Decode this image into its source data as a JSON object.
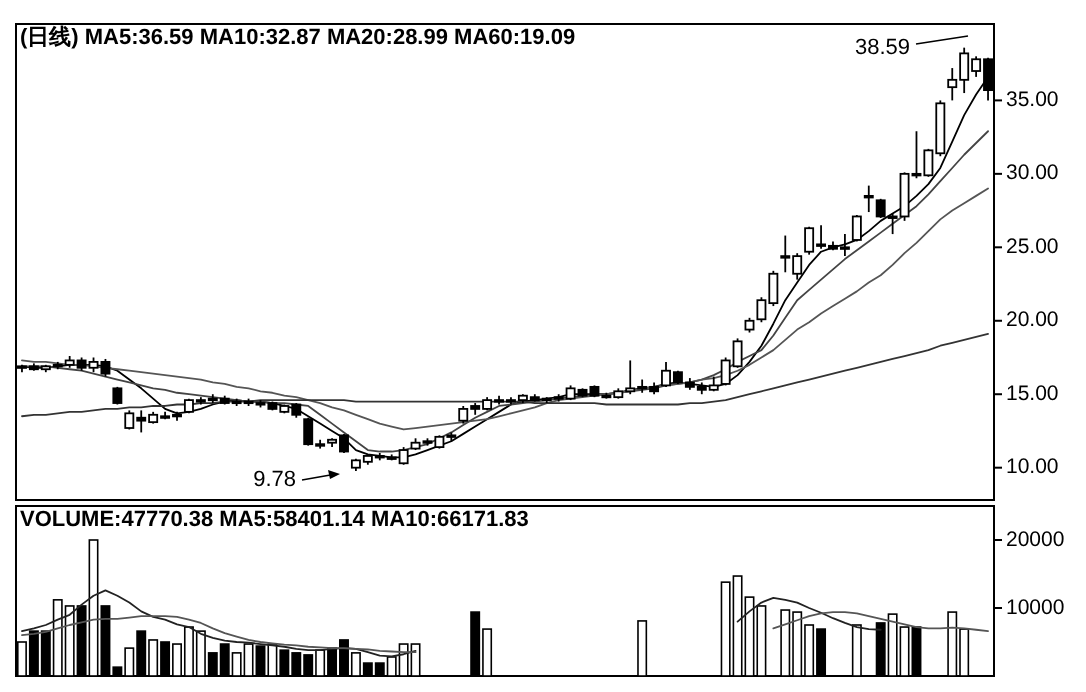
{
  "chart_data": [
    {
      "type": "candlestick",
      "title": "(日线) MA5:36.59 MA10:32.87 MA20:28.99 MA60:19.09",
      "color": "#000000",
      "categories": [
        null,
        null,
        null,
        null,
        null,
        null,
        null,
        null,
        null,
        null,
        null,
        null,
        null,
        null,
        null,
        null,
        null,
        null,
        null,
        null,
        null,
        null,
        null,
        null,
        null,
        null,
        null,
        null,
        null,
        null,
        null,
        null,
        null,
        null,
        null,
        null,
        null,
        null,
        null,
        null,
        null,
        null,
        null,
        null,
        null,
        null,
        null,
        null,
        null,
        null,
        null,
        null,
        null,
        null,
        null,
        null,
        null,
        null,
        null,
        null,
        null,
        null,
        null,
        null,
        null,
        null,
        null,
        null,
        null,
        null,
        null,
        null,
        null,
        null,
        null,
        null,
        null,
        null,
        null,
        null,
        null,
        null
      ],
      "ohlc": [
        [
          16.8,
          17.0,
          16.5,
          16.9
        ],
        [
          16.9,
          17.1,
          16.6,
          16.7
        ],
        [
          16.7,
          17.0,
          16.5,
          16.9
        ],
        [
          16.9,
          17.2,
          16.7,
          17.0
        ],
        [
          17.0,
          17.6,
          16.8,
          17.3
        ],
        [
          17.3,
          17.5,
          16.6,
          16.8
        ],
        [
          16.8,
          17.5,
          16.5,
          17.2
        ],
        [
          17.2,
          17.4,
          16.2,
          16.4
        ],
        [
          15.4,
          15.5,
          14.3,
          14.4
        ],
        [
          12.7,
          13.9,
          12.6,
          13.7
        ],
        [
          13.4,
          13.9,
          12.4,
          13.2
        ],
        [
          13.1,
          13.8,
          13.0,
          13.6
        ],
        [
          13.5,
          13.8,
          13.3,
          13.5
        ],
        [
          13.5,
          13.8,
          13.2,
          13.6
        ],
        [
          13.8,
          14.7,
          13.7,
          14.6
        ],
        [
          14.5,
          14.8,
          14.3,
          14.6
        ],
        [
          14.6,
          15.0,
          14.4,
          14.7
        ],
        [
          14.7,
          14.9,
          14.3,
          14.4
        ],
        [
          14.4,
          14.7,
          14.2,
          14.5
        ],
        [
          14.5,
          14.7,
          14.2,
          14.4
        ],
        [
          14.3,
          14.6,
          14.1,
          14.4
        ],
        [
          14.4,
          14.5,
          13.9,
          14.0
        ],
        [
          13.8,
          14.3,
          13.7,
          14.2
        ],
        [
          14.3,
          14.4,
          13.4,
          13.6
        ],
        [
          13.3,
          13.4,
          11.5,
          11.6
        ],
        [
          11.6,
          11.9,
          11.3,
          11.6
        ],
        [
          11.7,
          12.0,
          11.4,
          11.9
        ],
        [
          12.2,
          12.3,
          11.0,
          11.1
        ],
        [
          10.0,
          10.6,
          9.78,
          10.5
        ],
        [
          10.4,
          10.9,
          10.2,
          10.8
        ],
        [
          10.8,
          11.0,
          10.5,
          10.7
        ],
        [
          10.7,
          10.9,
          10.5,
          10.6
        ],
        [
          10.3,
          11.4,
          10.2,
          11.2
        ],
        [
          11.3,
          12.0,
          11.2,
          11.7
        ],
        [
          11.7,
          12.0,
          11.5,
          11.8
        ],
        [
          11.4,
          12.2,
          11.3,
          12.1
        ],
        [
          12.1,
          12.4,
          11.8,
          12.2
        ],
        [
          13.2,
          14.2,
          13.0,
          14.0
        ],
        [
          14.2,
          14.4,
          13.6,
          14.0
        ],
        [
          14.0,
          14.8,
          13.9,
          14.6
        ],
        [
          14.6,
          14.9,
          14.3,
          14.5
        ],
        [
          14.5,
          14.8,
          14.3,
          14.6
        ],
        [
          14.6,
          15.0,
          14.4,
          14.9
        ],
        [
          14.8,
          15.0,
          14.5,
          14.6
        ],
        [
          14.6,
          14.8,
          14.4,
          14.7
        ],
        [
          14.7,
          15.0,
          14.5,
          14.8
        ],
        [
          14.7,
          15.6,
          14.6,
          15.4
        ],
        [
          15.3,
          15.4,
          14.8,
          14.9
        ],
        [
          15.5,
          15.6,
          14.8,
          14.9
        ],
        [
          14.9,
          15.1,
          14.7,
          14.8
        ],
        [
          14.8,
          15.4,
          14.7,
          15.2
        ],
        [
          15.2,
          17.3,
          15.0,
          15.4
        ],
        [
          15.4,
          16.0,
          15.1,
          15.5
        ],
        [
          15.5,
          15.8,
          15.0,
          15.2
        ],
        [
          15.6,
          17.2,
          15.5,
          16.6
        ],
        [
          16.5,
          16.6,
          15.7,
          15.8
        ],
        [
          15.8,
          16.1,
          15.3,
          15.5
        ],
        [
          15.5,
          15.8,
          15.0,
          15.3
        ],
        [
          15.3,
          16.2,
          15.2,
          15.6
        ],
        [
          15.7,
          17.5,
          15.6,
          17.3
        ],
        [
          16.9,
          18.8,
          16.8,
          18.6
        ],
        [
          19.4,
          20.2,
          19.2,
          20.0
        ],
        [
          20.1,
          21.6,
          19.9,
          21.4
        ],
        [
          21.2,
          23.4,
          21.0,
          23.2
        ],
        [
          24.4,
          25.8,
          23.3,
          24.3
        ],
        [
          23.2,
          24.6,
          22.8,
          24.4
        ],
        [
          24.7,
          26.4,
          24.5,
          26.3
        ],
        [
          25.2,
          26.5,
          24.9,
          25.1
        ],
        [
          25.1,
          25.4,
          24.8,
          24.9
        ],
        [
          24.9,
          25.9,
          24.4,
          25.0
        ],
        [
          25.5,
          27.2,
          25.4,
          27.1
        ],
        [
          28.4,
          29.2,
          27.4,
          28.5
        ],
        [
          28.2,
          28.3,
          27.0,
          27.1
        ],
        [
          27.0,
          27.3,
          25.9,
          27.1
        ],
        [
          27.1,
          30.1,
          26.8,
          30.0
        ],
        [
          29.9,
          32.9,
          29.7,
          30.0
        ],
        [
          29.9,
          31.7,
          29.8,
          31.6
        ],
        [
          31.4,
          35.0,
          31.2,
          34.8
        ],
        [
          35.9,
          37.2,
          35.0,
          36.4
        ],
        [
          36.4,
          38.59,
          35.5,
          38.2
        ],
        [
          37.0,
          38.0,
          36.6,
          37.8
        ],
        [
          37.8,
          37.9,
          35.0,
          35.7
        ]
      ],
      "series": [
        {
          "type": "line",
          "color": "#000000",
          "values": [
            16.9,
            16.8,
            16.8,
            16.9,
            17.0,
            17.0,
            17.0,
            16.9,
            16.6,
            16.0,
            15.4,
            14.7,
            14.0,
            13.7,
            13.8,
            14.0,
            14.3,
            14.5,
            14.6,
            14.5,
            14.5,
            14.4,
            14.2,
            14.0,
            13.5,
            13.0,
            12.5,
            12.0,
            11.2,
            10.9,
            10.8,
            10.7,
            10.7,
            10.9,
            11.2,
            11.5,
            11.8,
            12.3,
            12.8,
            13.3,
            13.8,
            14.3,
            14.5,
            14.6,
            14.7,
            14.8,
            15.0,
            15.0,
            15.0,
            15.0,
            15.1,
            15.3,
            15.4,
            15.5,
            15.7,
            15.8,
            15.7,
            15.6,
            15.5,
            15.7,
            16.3,
            17.2,
            18.3,
            19.8,
            21.4,
            22.6,
            23.8,
            24.7,
            25.0,
            25.2,
            25.5,
            26.1,
            26.8,
            27.3,
            27.8,
            28.5,
            29.3,
            30.4,
            32.2,
            34.0,
            35.4,
            36.6
          ]
        },
        {
          "type": "line",
          "color": "#444444",
          "values": [
            16.9,
            16.9,
            16.9,
            16.8,
            16.7,
            16.6,
            16.4,
            16.2,
            16.0,
            15.8,
            15.6,
            15.4,
            15.3,
            15.1,
            15.0,
            14.9,
            14.8,
            14.7,
            14.6,
            14.5,
            14.5,
            14.4,
            14.4,
            14.3,
            14.2,
            13.6,
            13.0,
            12.4,
            11.8,
            11.2,
            11.1,
            11.1,
            11.2,
            11.4,
            11.6,
            12.0,
            12.4,
            12.9,
            13.4,
            13.8,
            14.2,
            14.3,
            14.4,
            14.5,
            14.6,
            14.7,
            14.8,
            14.9,
            14.9,
            15.0,
            15.1,
            15.2,
            15.3,
            15.4,
            15.6,
            15.7,
            15.8,
            16.0,
            16.3,
            16.7,
            17.2,
            17.6,
            18.0,
            19.0,
            20.2,
            21.4,
            22.1,
            22.8,
            23.5,
            24.2,
            24.8,
            25.4,
            26.0,
            26.6,
            27.2,
            27.8,
            28.6,
            29.5,
            30.4,
            31.3,
            32.1,
            32.9
          ]
        },
        {
          "type": "line",
          "color": "#555555",
          "values": [
            17.3,
            17.2,
            17.2,
            17.1,
            17.0,
            17.0,
            16.9,
            16.8,
            16.7,
            16.6,
            16.5,
            16.4,
            16.3,
            16.2,
            16.1,
            16.0,
            15.8,
            15.7,
            15.5,
            15.4,
            15.2,
            15.1,
            14.9,
            14.8,
            14.6,
            14.4,
            14.1,
            13.9,
            13.6,
            13.3,
            13.0,
            12.8,
            12.6,
            12.7,
            12.8,
            12.9,
            13.0,
            13.1,
            13.2,
            13.3,
            13.5,
            13.7,
            13.9,
            14.1,
            14.4,
            14.6,
            14.7,
            14.8,
            14.9,
            15.0,
            15.1,
            15.2,
            15.4,
            15.5,
            15.6,
            15.7,
            15.8,
            16.0,
            16.1,
            16.3,
            16.6,
            17.0,
            17.5,
            18.0,
            18.7,
            19.4,
            19.9,
            20.5,
            21.0,
            21.5,
            22.0,
            22.6,
            23.1,
            23.8,
            24.6,
            25.3,
            26.1,
            26.9,
            27.5,
            28.0,
            28.5,
            29.0
          ]
        },
        {
          "type": "line",
          "color": "#333333",
          "values": [
            13.5,
            13.6,
            13.6,
            13.7,
            13.8,
            13.8,
            13.9,
            14.0,
            14.0,
            14.1,
            14.1,
            14.2,
            14.2,
            14.3,
            14.3,
            14.4,
            14.4,
            14.5,
            14.5,
            14.5,
            14.6,
            14.6,
            14.6,
            14.6,
            14.6,
            14.6,
            14.6,
            14.6,
            14.5,
            14.5,
            14.5,
            14.5,
            14.5,
            14.5,
            14.5,
            14.5,
            14.5,
            14.5,
            14.5,
            14.5,
            14.5,
            14.5,
            14.5,
            14.4,
            14.4,
            14.4,
            14.4,
            14.4,
            14.4,
            14.3,
            14.3,
            14.3,
            14.3,
            14.3,
            14.3,
            14.3,
            14.4,
            14.4,
            14.5,
            14.6,
            14.8,
            15.0,
            15.2,
            15.4,
            15.6,
            15.8,
            16.0,
            16.2,
            16.4,
            16.6,
            16.8,
            17.0,
            17.2,
            17.4,
            17.6,
            17.8,
            18.0,
            18.3,
            18.5,
            18.7,
            18.9,
            19.1
          ]
        }
      ],
      "ylim": [
        7.8,
        40.2
      ],
      "yticks": [
        {
          "value": 10,
          "label": "10.00"
        },
        {
          "value": 15,
          "label": "15.00"
        },
        {
          "value": 20,
          "label": "20.00"
        },
        {
          "value": 25,
          "label": "25.00"
        },
        {
          "value": 30,
          "label": "30.00"
        },
        {
          "value": 35,
          "label": "35.00"
        }
      ],
      "tick_labels": "y",
      "annotations": [
        "38.59",
        "9.78"
      ]
    },
    {
      "type": "bar",
      "title": "VOLUME:47770.38 MA5:58401.14 MA10:66171.83",
      "categories": [
        null,
        null,
        null,
        null,
        null,
        null,
        null,
        null,
        null,
        null,
        null,
        null,
        null,
        null,
        null,
        null,
        null,
        null,
        null,
        null,
        null,
        null,
        null,
        null,
        null,
        null,
        null,
        null,
        null,
        null,
        null,
        null,
        null,
        null,
        null,
        null,
        null,
        null,
        null,
        null,
        null,
        null,
        null,
        null,
        null,
        null,
        null,
        null,
        null,
        null,
        null,
        null,
        null,
        null,
        null,
        null,
        null,
        null,
        null,
        null,
        null,
        null,
        null,
        null,
        null,
        null,
        null,
        null,
        null,
        null,
        null,
        null,
        null,
        null,
        null,
        null,
        null,
        null,
        null,
        null,
        null,
        null
      ],
      "series": [
        {
          "values": [
            5000,
            6600,
            6600,
            11200,
            10300,
            10300,
            20000,
            10300,
            1300,
            4100,
            6600,
            5300,
            5000,
            4700,
            7200,
            6600,
            3400,
            4700,
            3400,
            4700,
            4400,
            4700,
            3800,
            3400,
            3100,
            3800,
            4100,
            5300,
            3400,
            1900,
            1900,
            2800,
            4700,
            4700,
            null,
            null,
            null,
            null,
            9400,
            6900,
            null,
            null,
            null,
            null,
            null,
            null,
            null,
            null,
            null,
            null,
            null,
            null,
            8100,
            null,
            null,
            null,
            null,
            null,
            null,
            13800,
            14700,
            11600,
            10300,
            null,
            9700,
            9400,
            7500,
            6900,
            null,
            null,
            7500,
            null,
            7800,
            9100,
            7200,
            7200,
            null,
            null,
            9400,
            6900,
            null,
            null
          ],
          "colors": [
            "#ffffff",
            "#000000",
            "#000000",
            "#ffffff",
            "#ffffff",
            "#000000",
            "#ffffff",
            "#000000",
            "#000000",
            "#ffffff",
            "#000000",
            "#ffffff",
            "#000000",
            "#ffffff",
            "#ffffff",
            "#ffffff",
            "#000000",
            "#000000",
            "#ffffff",
            "#ffffff",
            "#000000",
            "#ffffff",
            "#000000",
            "#000000",
            "#000000",
            "#ffffff",
            "#000000",
            "#000000",
            "#ffffff",
            "#000000",
            "#000000",
            "#ffffff",
            "#ffffff",
            "#ffffff",
            null,
            null,
            null,
            null,
            "#000000",
            "#ffffff",
            null,
            null,
            null,
            null,
            null,
            null,
            null,
            null,
            null,
            null,
            null,
            null,
            "#ffffff",
            null,
            null,
            null,
            null,
            null,
            null,
            "#ffffff",
            "#ffffff",
            "#ffffff",
            "#ffffff",
            null,
            "#ffffff",
            "#ffffff",
            "#ffffff",
            "#000000",
            null,
            null,
            "#ffffff",
            null,
            "#000000",
            "#ffffff",
            "#ffffff",
            "#000000",
            null,
            null,
            "#ffffff",
            "#ffffff",
            null,
            null
          ]
        },
        {
          "type": "line",
          "color": "#222222",
          "values": [
            6600,
            7000,
            7500,
            8300,
            9000,
            10500,
            11800,
            12600,
            11800,
            10800,
            9500,
            8700,
            8300,
            7600,
            7200,
            6200,
            5600,
            5200,
            5000,
            4900,
            4700,
            4500,
            4300,
            4000,
            3800,
            3800,
            4000,
            4100,
            4000,
            3500,
            3000,
            2900,
            3200,
            3700,
            null,
            null,
            null,
            null,
            null,
            null,
            null,
            null,
            null,
            null,
            null,
            null,
            null,
            null,
            null,
            null,
            null,
            null,
            null,
            null,
            null,
            null,
            null,
            null,
            null,
            null,
            8000,
            9500,
            10800,
            11500,
            11200,
            10800,
            10000,
            9300,
            8500,
            7800,
            7200,
            6900,
            6800,
            null,
            null,
            null,
            null,
            null,
            null,
            null,
            null,
            null
          ]
        },
        {
          "type": "line",
          "color": "#555555",
          "values": [
            6000,
            6200,
            6500,
            7000,
            7500,
            7900,
            8300,
            8400,
            8400,
            8600,
            8800,
            8800,
            8800,
            8700,
            8300,
            7800,
            7000,
            6300,
            5800,
            5300,
            5000,
            4800,
            4600,
            4500,
            4300,
            4200,
            4100,
            4100,
            4000,
            3900,
            3700,
            3600,
            3500,
            3500,
            null,
            null,
            null,
            null,
            null,
            null,
            null,
            null,
            null,
            null,
            null,
            null,
            null,
            null,
            null,
            null,
            null,
            null,
            null,
            null,
            null,
            null,
            null,
            null,
            null,
            null,
            null,
            null,
            null,
            7000,
            7600,
            8200,
            8800,
            9200,
            9400,
            9400,
            9200,
            8800,
            8400,
            8000,
            7600,
            7200,
            7000,
            7000,
            7100,
            7000,
            6800,
            6600
          ]
        }
      ],
      "ylim": [
        0,
        25000
      ],
      "yticks": [
        10000,
        20000
      ],
      "tick_labels": "y"
    }
  ]
}
